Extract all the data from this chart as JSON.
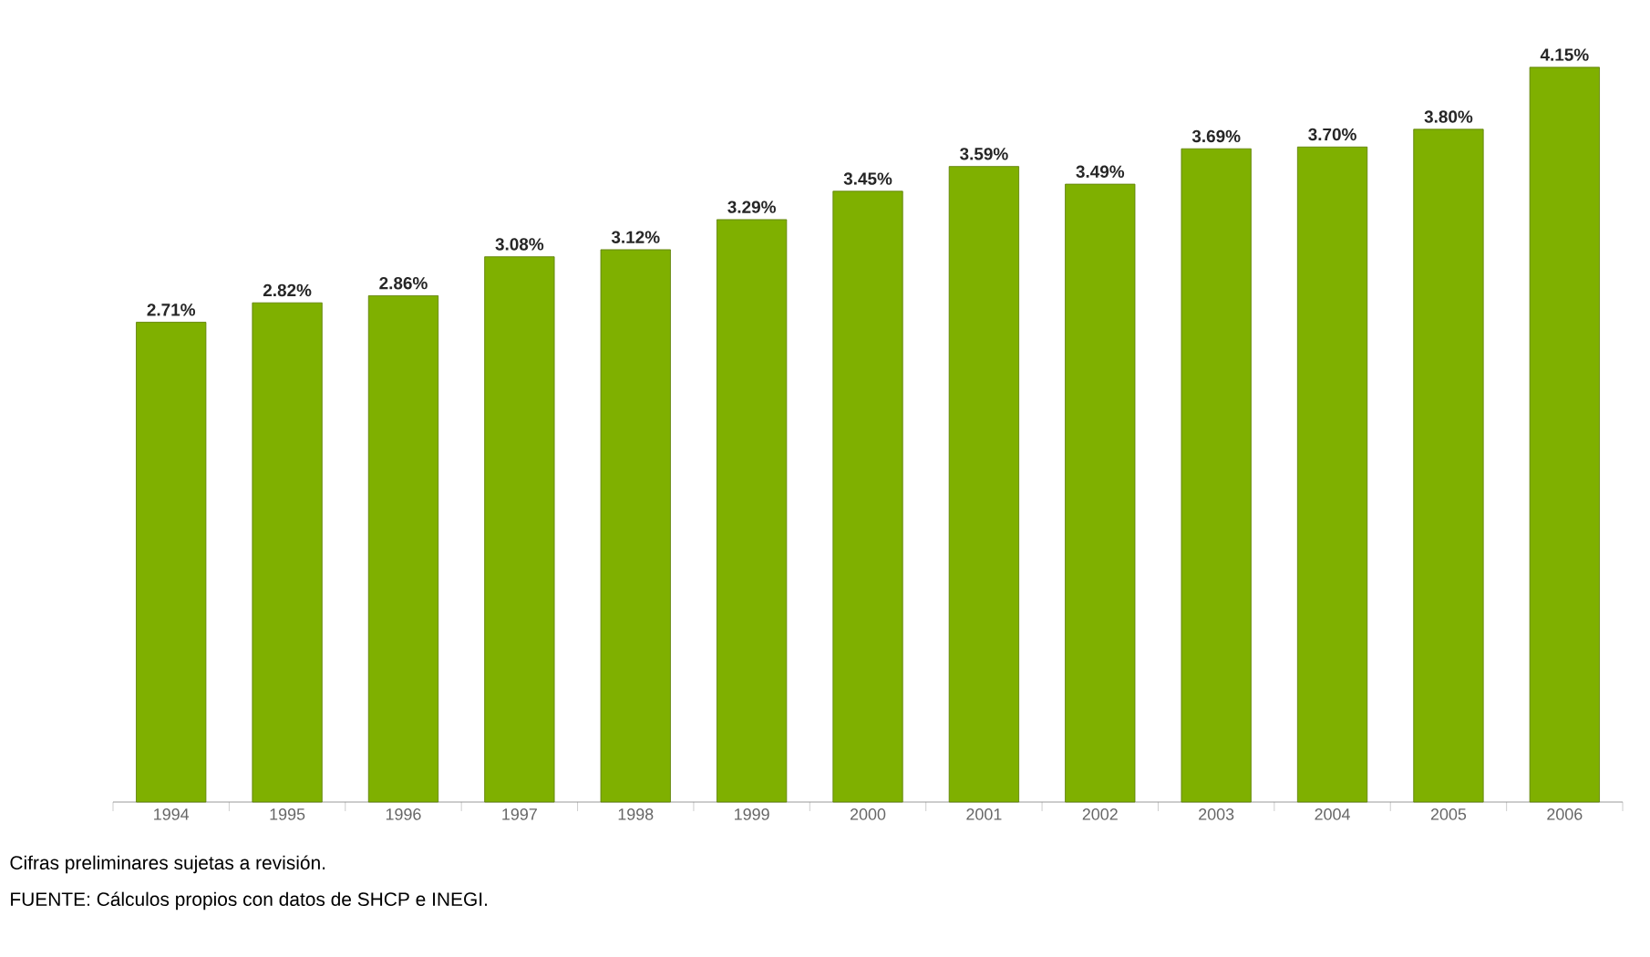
{
  "chart_data": {
    "type": "bar",
    "categories": [
      "1994",
      "1995",
      "1996",
      "1997",
      "1998",
      "1999",
      "2000",
      "2001",
      "2002",
      "2003",
      "2004",
      "2005",
      "2006"
    ],
    "values": [
      2.71,
      2.82,
      2.86,
      3.08,
      3.12,
      3.29,
      3.45,
      3.59,
      3.49,
      3.69,
      3.7,
      3.8,
      4.15
    ],
    "value_labels": [
      "2.71%",
      "2.82%",
      "2.86%",
      "3.08%",
      "3.12%",
      "3.29%",
      "3.45%",
      "3.59%",
      "3.49%",
      "3.69%",
      "3.70%",
      "3.80%",
      "4.15%"
    ],
    "color": "#7fb000",
    "annotations": [
      "Cifras preliminares sujetas a revisión.",
      "FUENTE: Cálculos propios con datos de SHCP e INEGI."
    ]
  }
}
